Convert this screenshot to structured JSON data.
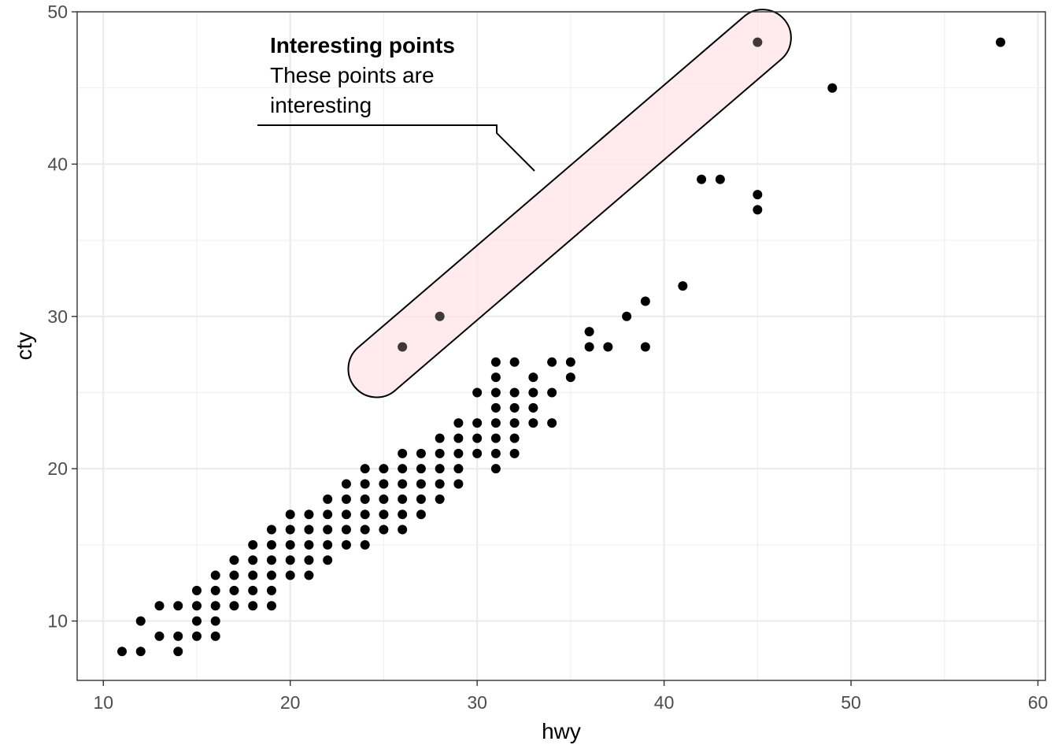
{
  "chart_data": {
    "type": "scatter",
    "title": "",
    "xlabel": "hwy",
    "ylabel": "cty",
    "xlim": [
      8.6,
      60.4
    ],
    "ylim": [
      6.1,
      50.0
    ],
    "x_ticks": [
      10,
      20,
      30,
      40,
      50,
      60
    ],
    "y_ticks": [
      10,
      20,
      30,
      40,
      50
    ],
    "x_tick_labels": [
      "10",
      "20",
      "30",
      "40",
      "50",
      "60"
    ],
    "y_tick_labels": [
      "10",
      "20",
      "30",
      "40",
      "50"
    ],
    "grid": true,
    "legend": "none",
    "point_color": "#000000",
    "highlight_fill": "#ffe4e8",
    "points": [
      [
        11,
        8
      ],
      [
        12,
        8
      ],
      [
        12,
        10
      ],
      [
        13,
        9
      ],
      [
        13,
        11
      ],
      [
        14,
        8
      ],
      [
        14,
        9
      ],
      [
        14,
        11
      ],
      [
        15,
        9
      ],
      [
        15,
        10
      ],
      [
        15,
        11
      ],
      [
        15,
        12
      ],
      [
        16,
        9
      ],
      [
        16,
        10
      ],
      [
        16,
        11
      ],
      [
        16,
        12
      ],
      [
        16,
        13
      ],
      [
        17,
        11
      ],
      [
        17,
        12
      ],
      [
        17,
        13
      ],
      [
        17,
        14
      ],
      [
        18,
        11
      ],
      [
        18,
        12
      ],
      [
        18,
        13
      ],
      [
        18,
        14
      ],
      [
        18,
        15
      ],
      [
        19,
        11
      ],
      [
        19,
        12
      ],
      [
        19,
        13
      ],
      [
        19,
        14
      ],
      [
        19,
        15
      ],
      [
        19,
        16
      ],
      [
        20,
        13
      ],
      [
        20,
        14
      ],
      [
        20,
        15
      ],
      [
        20,
        16
      ],
      [
        20,
        17
      ],
      [
        21,
        13
      ],
      [
        21,
        14
      ],
      [
        21,
        15
      ],
      [
        21,
        16
      ],
      [
        21,
        17
      ],
      [
        22,
        14
      ],
      [
        22,
        15
      ],
      [
        22,
        16
      ],
      [
        22,
        17
      ],
      [
        22,
        18
      ],
      [
        23,
        15
      ],
      [
        23,
        16
      ],
      [
        23,
        17
      ],
      [
        23,
        18
      ],
      [
        23,
        19
      ],
      [
        24,
        15
      ],
      [
        24,
        16
      ],
      [
        24,
        17
      ],
      [
        24,
        18
      ],
      [
        24,
        19
      ],
      [
        24,
        20
      ],
      [
        25,
        16
      ],
      [
        25,
        17
      ],
      [
        25,
        18
      ],
      [
        25,
        19
      ],
      [
        25,
        20
      ],
      [
        26,
        16
      ],
      [
        26,
        17
      ],
      [
        26,
        18
      ],
      [
        26,
        19
      ],
      [
        26,
        20
      ],
      [
        26,
        21
      ],
      [
        26,
        28
      ],
      [
        27,
        17
      ],
      [
        27,
        18
      ],
      [
        27,
        19
      ],
      [
        27,
        20
      ],
      [
        27,
        21
      ],
      [
        28,
        18
      ],
      [
        28,
        19
      ],
      [
        28,
        20
      ],
      [
        28,
        21
      ],
      [
        28,
        22
      ],
      [
        28,
        30
      ],
      [
        29,
        19
      ],
      [
        29,
        20
      ],
      [
        29,
        21
      ],
      [
        29,
        22
      ],
      [
        29,
        23
      ],
      [
        30,
        21
      ],
      [
        30,
        22
      ],
      [
        30,
        23
      ],
      [
        30,
        25
      ],
      [
        31,
        20
      ],
      [
        31,
        21
      ],
      [
        31,
        22
      ],
      [
        31,
        23
      ],
      [
        31,
        24
      ],
      [
        31,
        25
      ],
      [
        31,
        26
      ],
      [
        31,
        27
      ],
      [
        32,
        21
      ],
      [
        32,
        22
      ],
      [
        32,
        23
      ],
      [
        32,
        24
      ],
      [
        32,
        25
      ],
      [
        32,
        27
      ],
      [
        33,
        23
      ],
      [
        33,
        24
      ],
      [
        33,
        25
      ],
      [
        33,
        26
      ],
      [
        34,
        23
      ],
      [
        34,
        25
      ],
      [
        34,
        27
      ],
      [
        35,
        26
      ],
      [
        35,
        27
      ],
      [
        36,
        28
      ],
      [
        36,
        29
      ],
      [
        37,
        28
      ],
      [
        38,
        30
      ],
      [
        39,
        28
      ],
      [
        39,
        31
      ],
      [
        41,
        32
      ],
      [
        42,
        39
      ],
      [
        43,
        39
      ],
      [
        45,
        37
      ],
      [
        45,
        38
      ],
      [
        45,
        48
      ],
      [
        49,
        45
      ],
      [
        58,
        48
      ]
    ],
    "highlighted_points": [
      [
        26,
        28
      ],
      [
        28,
        30
      ],
      [
        45,
        48
      ]
    ],
    "annotation": {
      "title": "Interesting points",
      "lines": [
        "These points are",
        "interesting"
      ]
    }
  }
}
